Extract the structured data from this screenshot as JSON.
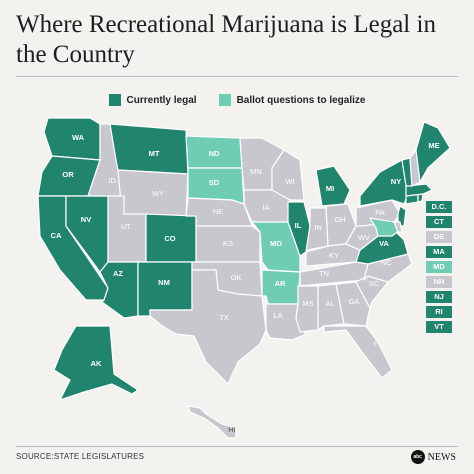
{
  "title": "Where Recreational Marijuana is Legal in the Country",
  "legend": [
    {
      "label": "Currently legal",
      "color": "#21846c"
    },
    {
      "label": "Ballot questions to legalize",
      "color": "#6fcdb3"
    }
  ],
  "colors": {
    "legal": "#21846c",
    "ballot": "#6fcdb3",
    "none": "#c7c7cd",
    "land_label": "#555555"
  },
  "states": {
    "WA": "legal",
    "OR": "legal",
    "CA": "legal",
    "NV": "legal",
    "AZ": "legal",
    "MT": "legal",
    "CO": "legal",
    "NM": "legal",
    "AK": "legal",
    "IL": "legal",
    "MI": "legal",
    "NY": "legal",
    "VA": "legal",
    "ME": "legal",
    "VT": "legal",
    "MA": "legal",
    "CT": "legal",
    "RI": "legal",
    "NJ": "legal",
    "MD": "ballot",
    "ND": "ballot",
    "SD": "ballot",
    "MO": "ballot",
    "AR": "ballot",
    "ID": "none",
    "WY": "none",
    "UT": "none",
    "NE": "none",
    "KS": "none",
    "OK": "none",
    "TX": "none",
    "MN": "none",
    "IA": "none",
    "WI": "none",
    "IN": "none",
    "OH": "none",
    "KY": "none",
    "TN": "none",
    "MS": "none",
    "AL": "none",
    "GA": "none",
    "FL": "none",
    "SC": "none",
    "NC": "none",
    "WV": "none",
    "PA": "none",
    "LA": "none",
    "DE": "none",
    "NH": "none",
    "HI": "none"
  },
  "small_states": [
    {
      "code": "D.C.",
      "status": "legal"
    },
    {
      "code": "CT",
      "status": "legal"
    },
    {
      "code": "DE",
      "status": "none"
    },
    {
      "code": "MA",
      "status": "legal"
    },
    {
      "code": "MD",
      "status": "ballot"
    },
    {
      "code": "NH",
      "status": "none"
    },
    {
      "code": "NJ",
      "status": "legal"
    },
    {
      "code": "RI",
      "status": "legal"
    },
    {
      "code": "VT",
      "status": "legal"
    }
  ],
  "source": "SOURCE:STATE LEGISLATURES",
  "logo": {
    "mark": "abc",
    "name": "NEWS",
    "icon": "abc-news-logo"
  }
}
